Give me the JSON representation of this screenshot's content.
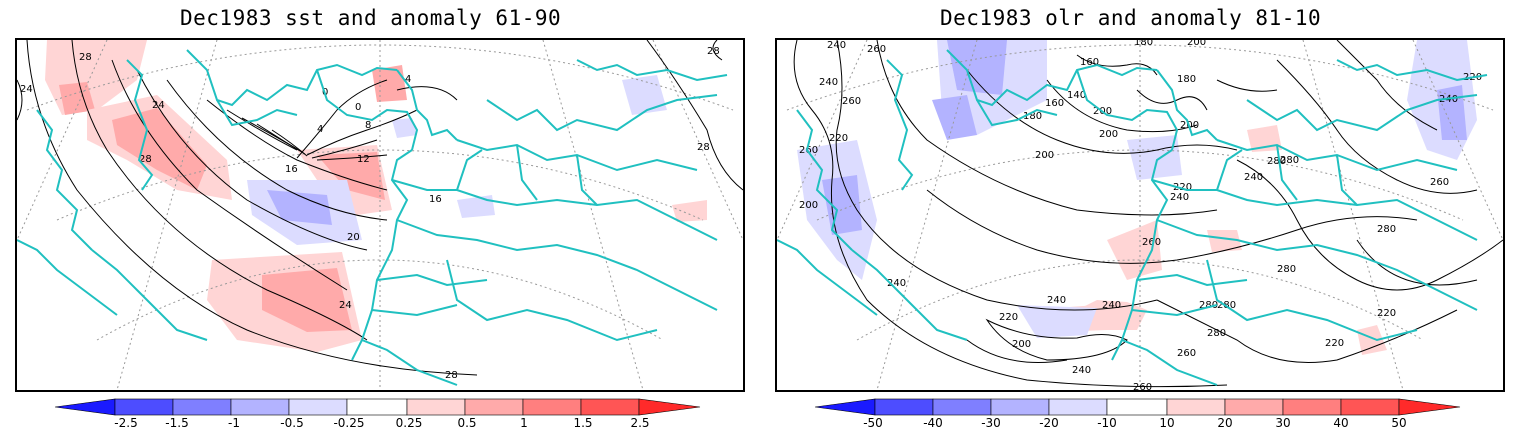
{
  "panels": [
    {
      "title": "Dec1983 sst and anomaly 61-90",
      "colorbar": {
        "labels": [
          "-2.5",
          "-1.5",
          "-1",
          "-0.5",
          "-0.25",
          "0.25",
          "0.5",
          "1",
          "1.5",
          "2.5"
        ],
        "colors": [
          "#1a1aff",
          "#4d4dff",
          "#7f7fff",
          "#b3b3ff",
          "#dcdcff",
          "#ffffff",
          "#ffd5d5",
          "#ffaaaa",
          "#ff7f7f",
          "#ff5555",
          "#ff2a2a"
        ]
      },
      "contour_labels": [
        "24",
        "28",
        "28",
        "28",
        "28",
        "24",
        "0",
        "0",
        "4",
        "4",
        "8",
        "12",
        "16",
        "16",
        "20",
        "24",
        "28"
      ]
    },
    {
      "title": "Dec1983 olr and anomaly 81-10",
      "colorbar": {
        "labels": [
          "-50",
          "-40",
          "-30",
          "-20",
          "-10",
          "10",
          "20",
          "30",
          "40",
          "50"
        ],
        "colors": [
          "#1a1aff",
          "#4d4dff",
          "#7f7fff",
          "#b3b3ff",
          "#dcdcff",
          "#ffffff",
          "#ffd5d5",
          "#ffaaaa",
          "#ff7f7f",
          "#ff5555",
          "#ff2a2a"
        ]
      },
      "contour_labels": [
        "240",
        "260",
        "240",
        "260",
        "220",
        "260",
        "200",
        "180",
        "160",
        "160",
        "140",
        "200",
        "180",
        "200",
        "180",
        "200",
        "200",
        "200",
        "220",
        "240",
        "260",
        "280",
        "240",
        "220",
        "240",
        "260",
        "280",
        "280",
        "280",
        "280",
        "240",
        "240",
        "240",
        "220",
        "200",
        "260",
        "280",
        "220",
        "220",
        "240",
        "260",
        "280"
      ]
    }
  ],
  "colors": {
    "coastline": "#20c0c0",
    "contour": "#000000",
    "graticule": "#9a9a9a",
    "frame": "#000000"
  }
}
